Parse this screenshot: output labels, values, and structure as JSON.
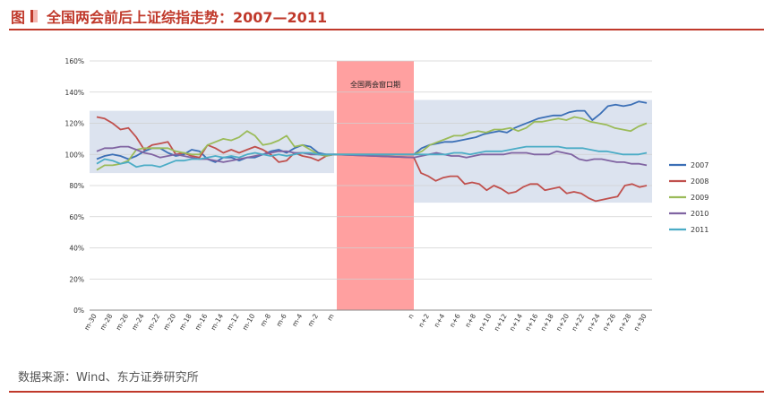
{
  "header": {
    "figure_label": "图",
    "title": "全国两会前后上证综指走势：2007—2011"
  },
  "source": "数据来源：Wind、东方证券研究所",
  "colors": {
    "accent": "#c0392b",
    "window": "#ffa0a0",
    "band": "#dce3ef"
  },
  "chart_data": {
    "type": "line",
    "title": "",
    "xlabel": "",
    "ylabel": "",
    "ylim": [
      0,
      160
    ],
    "yticks": [
      "0%",
      "20%",
      "40%",
      "60%",
      "80%",
      "100%",
      "120%",
      "140%",
      "160%"
    ],
    "xticks": [
      "m-30",
      "m-28",
      "m-26",
      "m-24",
      "m-22",
      "m-20",
      "m-18",
      "m-16",
      "m-14",
      "m-12",
      "m-10",
      "m-8",
      "m-6",
      "m-4",
      "m-2",
      "m",
      "n",
      "n+2",
      "n+4",
      "n+6",
      "n+8",
      "n+10",
      "n+12",
      "n+14",
      "n+16",
      "n+18",
      "n+20",
      "n+22",
      "n+24",
      "n+26",
      "n+28",
      "n+30"
    ],
    "annotation": "全国两会窗口期",
    "legend_position": "right",
    "grid": true,
    "series": [
      {
        "name": "2007",
        "color": "#3b6fb6",
        "pre": [
          97,
          99,
          100,
          99,
          97,
          99,
          102,
          104,
          104,
          101,
          99,
          100,
          103,
          102,
          97,
          95,
          98,
          98,
          96,
          98,
          98,
          100,
          102,
          103,
          101,
          104,
          106,
          105,
          101,
          100,
          100
        ],
        "post": [
          100,
          104,
          106,
          107,
          108,
          108,
          109,
          110,
          111,
          113,
          114,
          115,
          114,
          117,
          119,
          121,
          123,
          124,
          125,
          125,
          127,
          128,
          128,
          122,
          126,
          131,
          132,
          131,
          132,
          134,
          133
        ]
      },
      {
        "name": "2008",
        "color": "#c0504d",
        "pre": [
          124,
          123,
          120,
          116,
          117,
          111,
          103,
          106,
          107,
          108,
          100,
          101,
          99,
          98,
          106,
          104,
          101,
          103,
          101,
          103,
          105,
          103,
          100,
          95,
          96,
          101,
          99,
          98,
          96,
          99,
          100
        ],
        "post": [
          98,
          88,
          86,
          83,
          85,
          86,
          86,
          81,
          82,
          81,
          77,
          80,
          78,
          75,
          76,
          79,
          81,
          81,
          77,
          78,
          79,
          75,
          76,
          75,
          72,
          70,
          71,
          72,
          73,
          80,
          81,
          79,
          80
        ]
      },
      {
        "name": "2009",
        "color": "#9bbb59",
        "pre": [
          90,
          93,
          93,
          94,
          96,
          103,
          104,
          104,
          104,
          104,
          102,
          101,
          100,
          100,
          106,
          108,
          110,
          109,
          111,
          115,
          112,
          106,
          107,
          109,
          112,
          105,
          106,
          103,
          100,
          99,
          100
        ],
        "post": [
          100,
          102,
          106,
          108,
          110,
          112,
          112,
          114,
          115,
          114,
          116,
          116,
          117,
          115,
          117,
          121,
          121,
          122,
          123,
          122,
          124,
          123,
          121,
          120,
          119,
          117,
          116,
          115,
          118,
          120
        ]
      },
      {
        "name": "2010",
        "color": "#8064a2",
        "pre": [
          102,
          104,
          104,
          105,
          105,
          103,
          101,
          100,
          98,
          99,
          100,
          99,
          98,
          97,
          97,
          96,
          95,
          96,
          97,
          98,
          99,
          100,
          101,
          102,
          102,
          101,
          101,
          100,
          100,
          100,
          100
        ],
        "post": [
          98,
          99,
          100,
          101,
          100,
          99,
          99,
          98,
          99,
          100,
          100,
          100,
          100,
          101,
          101,
          101,
          100,
          100,
          100,
          102,
          101,
          100,
          97,
          96,
          97,
          97,
          96,
          95,
          95,
          94,
          94,
          93
        ]
      },
      {
        "name": "2011",
        "color": "#4bacc6",
        "pre": [
          94,
          97,
          96,
          94,
          95,
          92,
          93,
          93,
          92,
          94,
          96,
          96,
          97,
          97,
          98,
          99,
          98,
          99,
          98,
          100,
          101,
          100,
          99,
          100,
          99,
          100,
          101,
          101,
          100,
          100,
          100
        ],
        "post": [
          100,
          100,
          100,
          100,
          100,
          101,
          101,
          100,
          101,
          102,
          102,
          102,
          103,
          104,
          105,
          105,
          105,
          105,
          105,
          104,
          104,
          104,
          103,
          102,
          102,
          101,
          100,
          100,
          100,
          101
        ]
      }
    ]
  }
}
